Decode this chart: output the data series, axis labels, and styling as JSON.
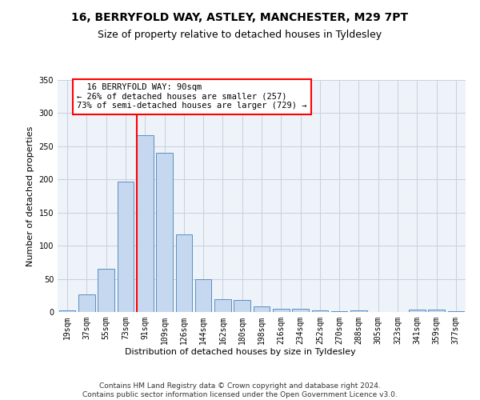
{
  "title_line1": "16, BERRYFOLD WAY, ASTLEY, MANCHESTER, M29 7PT",
  "title_line2": "Size of property relative to detached houses in Tyldesley",
  "xlabel": "Distribution of detached houses by size in Tyldesley",
  "ylabel": "Number of detached properties",
  "bar_color": "#c5d8f0",
  "bar_edge_color": "#5a8fc2",
  "categories": [
    "19sqm",
    "37sqm",
    "55sqm",
    "73sqm",
    "91sqm",
    "109sqm",
    "126sqm",
    "144sqm",
    "162sqm",
    "180sqm",
    "198sqm",
    "216sqm",
    "234sqm",
    "252sqm",
    "270sqm",
    "288sqm",
    "305sqm",
    "323sqm",
    "341sqm",
    "359sqm",
    "377sqm"
  ],
  "values": [
    2,
    26,
    65,
    197,
    267,
    240,
    117,
    50,
    19,
    18,
    9,
    5,
    5,
    2,
    1,
    2,
    0,
    0,
    4,
    4,
    1
  ],
  "ylim": [
    0,
    350
  ],
  "yticks": [
    0,
    50,
    100,
    150,
    200,
    250,
    300,
    350
  ],
  "property_label": "16 BERRYFOLD WAY: 90sqm",
  "pct_smaller": 26,
  "n_smaller": 257,
  "pct_larger": 73,
  "n_larger": 729,
  "vline_bin_index": 4,
  "bg_color": "#eef2f9",
  "grid_color": "#c8d0e0",
  "footer": "Contains HM Land Registry data © Crown copyright and database right 2024.\nContains public sector information licensed under the Open Government Licence v3.0.",
  "title_fontsize": 10,
  "subtitle_fontsize": 9,
  "axis_label_fontsize": 8,
  "tick_fontsize": 7,
  "footer_fontsize": 6.5,
  "annot_fontsize": 7.5
}
